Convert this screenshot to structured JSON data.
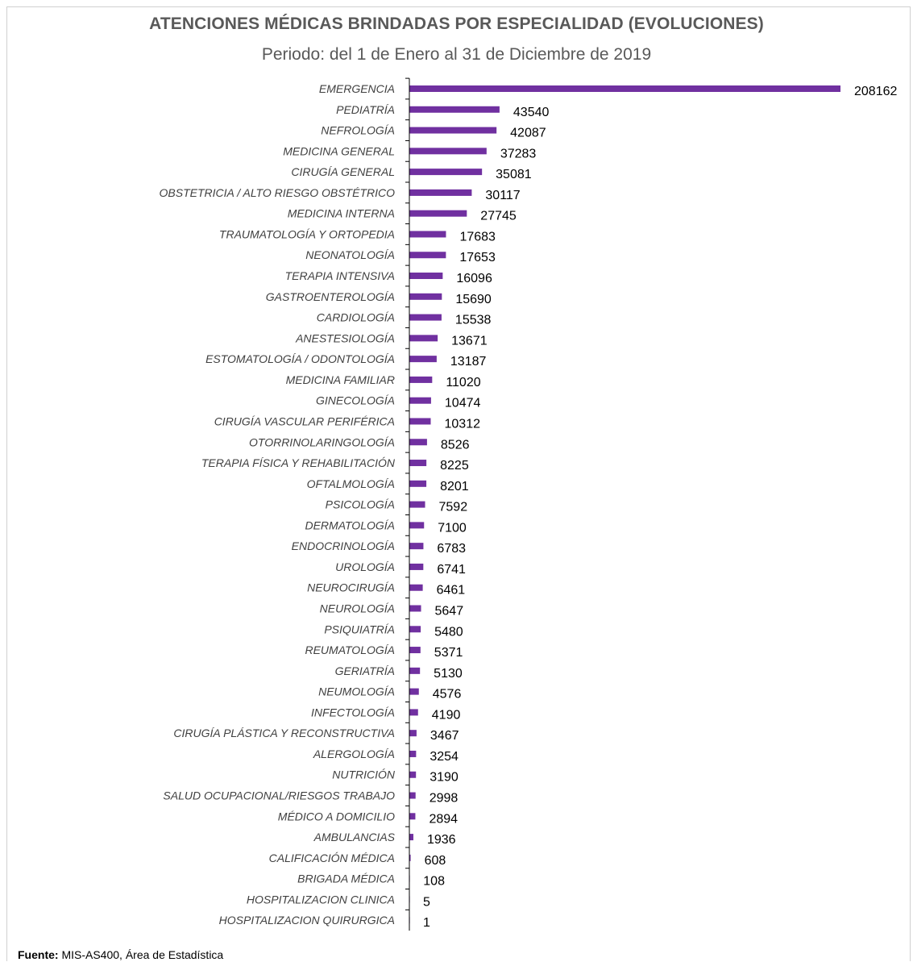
{
  "chart_data": {
    "type": "bar",
    "orientation": "horizontal",
    "title": "ATENCIONES MÉDICAS BRINDADAS POR ESPECIALIDAD (EVOLUCIONES)",
    "subtitle": "Periodo: del 1 de Enero al 31 de Diciembre de 2019",
    "color": "#7030A0",
    "categories": [
      "EMERGENCIA",
      "PEDIATRÍA",
      "NEFROLOGÍA",
      "MEDICINA GENERAL",
      "CIRUGÍA GENERAL",
      "OBSTETRICIA / ALTO RIESGO OBSTÉTRICO",
      "MEDICINA INTERNA",
      "TRAUMATOLOGÍA Y ORTOPEDIA",
      "NEONATOLOGÍA",
      "TERAPIA INTENSIVA",
      "GASTROENTEROLOGÍA",
      "CARDIOLOGÍA",
      "ANESTESIOLOGÍA",
      "ESTOMATOLOGÍA / ODONTOLOGÍA",
      "MEDICINA FAMILIAR",
      "GINECOLOGÍA",
      "CIRUGÍA VASCULAR PERIFÉRICA",
      "OTORRINOLARINGOLOGÍA",
      "TERAPIA FÍSICA Y REHABILITACIÓN",
      "OFTALMOLOGÍA",
      "PSICOLOGÍA",
      "DERMATOLOGÍA",
      "ENDOCRINOLOGÍA",
      "UROLOGÍA",
      "NEUROCIRUGÍA",
      "NEUROLOGÍA",
      "PSIQUIATRÍA",
      "REUMATOLOGÍA",
      "GERIATRÍA",
      "NEUMOLOGÍA",
      "INFECTOLOGÍA",
      "CIRUGÍA PLÁSTICA Y RECONSTRUCTIVA",
      "ALERGOLOGÍA",
      "NUTRICIÓN",
      "SALUD OCUPACIONAL/RIESGOS TRABAJO",
      "MÉDICO A DOMICILIO",
      "AMBULANCIAS",
      "CALIFICACIÓN MÉDICA",
      "BRIGADA MÉDICA",
      "HOSPITALIZACION CLINICA",
      "HOSPITALIZACION QUIRURGICA"
    ],
    "values": [
      208162,
      43540,
      42087,
      37283,
      35081,
      30117,
      27745,
      17683,
      17653,
      16096,
      15690,
      15538,
      13671,
      13187,
      11020,
      10474,
      10312,
      8526,
      8225,
      8201,
      7592,
      7100,
      6783,
      6741,
      6461,
      5647,
      5480,
      5371,
      5130,
      4576,
      4190,
      3467,
      3254,
      3190,
      2998,
      2894,
      1936,
      608,
      108,
      5,
      1
    ],
    "xlim": [
      0,
      208162
    ],
    "grid": false,
    "legend": "none"
  },
  "source": {
    "label": "Fuente:",
    "text": "MIS-AS400, Área de Estadística"
  }
}
